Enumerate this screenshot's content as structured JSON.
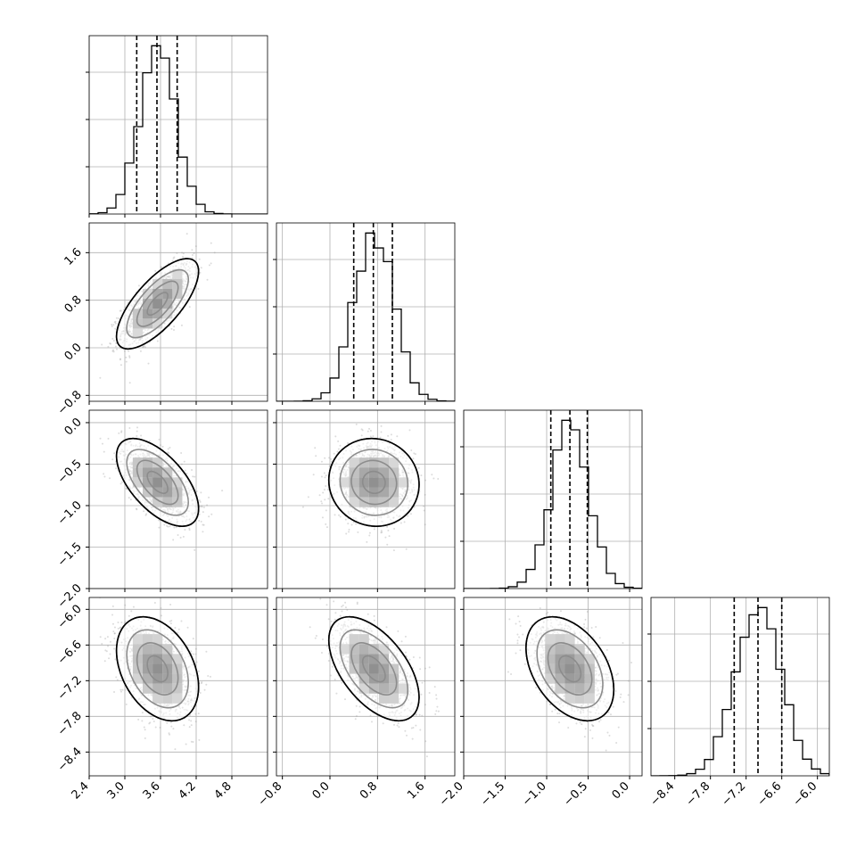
{
  "chart_data": {
    "type": "corner",
    "grid": true,
    "params": [
      {
        "ticks": [
          2.4,
          3.0,
          3.6,
          4.2,
          4.8
        ],
        "tick_labels": [
          "2.4",
          "3.0",
          "3.6",
          "4.2",
          "4.8"
        ],
        "range": [
          2.4,
          5.4
        ],
        "mean": 3.55,
        "std": 0.3,
        "quantiles": [
          3.2,
          3.54,
          3.88
        ]
      },
      {
        "ticks": [
          -0.8,
          0.0,
          0.8,
          1.6
        ],
        "tick_labels": [
          "−0.8",
          "0.0",
          "0.8",
          "1.6"
        ],
        "range": [
          -0.9,
          2.1
        ],
        "mean": 0.74,
        "std": 0.33,
        "quantiles": [
          0.4,
          0.73,
          1.05
        ]
      },
      {
        "ticks": [
          -2.0,
          -1.5,
          -1.0,
          -0.5,
          0.0
        ],
        "tick_labels": [
          "−2.0",
          "−1.5",
          "−1.0",
          "−0.5",
          "0.0"
        ],
        "range": [
          -2.0,
          0.15
        ],
        "mean": -0.72,
        "std": 0.23,
        "quantiles": [
          -0.95,
          -0.72,
          -0.51
        ]
      },
      {
        "ticks": [
          -8.4,
          -7.8,
          -7.2,
          -6.6,
          -6.0
        ],
        "tick_labels": [
          "−8.4",
          "−7.8",
          "−7.2",
          "−6.6",
          "−6.0"
        ],
        "range": [
          -8.8,
          -5.8
        ],
        "mean": -7.0,
        "std": 0.38,
        "quantiles": [
          -7.4,
          -7.0,
          -6.6
        ]
      }
    ],
    "correlations": [
      [
        1.0,
        0.72,
        -0.6,
        -0.35
      ],
      [
        0.72,
        1.0,
        -0.05,
        -0.55
      ],
      [
        -0.6,
        -0.05,
        1.0,
        -0.4
      ],
      [
        -0.35,
        -0.55,
        -0.4,
        1.0
      ]
    ],
    "contour_levels_sigma": [
      0.5,
      1.0,
      1.5,
      2.0
    ]
  }
}
